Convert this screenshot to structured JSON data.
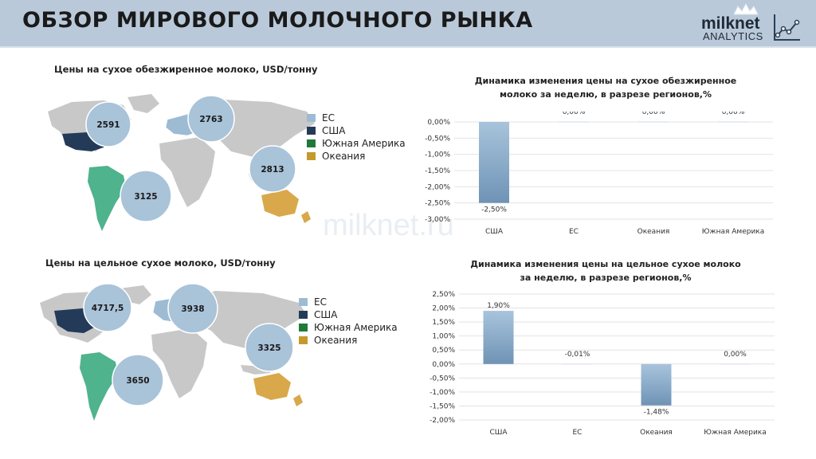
{
  "header": {
    "title": "ОБЗОР МИРОВОГО МОЛОЧНОГО РЫНКА",
    "logo_name": "milknet",
    "logo_sub": "ANALYTICS",
    "watermark": "milknet.ru"
  },
  "colors": {
    "eu": "#9dbbd3",
    "usa": "#243a59",
    "south_america": "#4fb38d",
    "oceania": "#d9a84a",
    "land": "#c8c8c8",
    "bubble": "#a9c3d9"
  },
  "smp_map": {
    "title": "Цены на сухое обезжиренное молоко, USD/тонну",
    "bubbles": {
      "usa": "2591",
      "eu": "2763",
      "south_america": "3125",
      "oceania": "2813"
    },
    "legend": [
      "ЕС",
      "США",
      "Южная Америка",
      "Океания"
    ]
  },
  "wmp_map": {
    "title": "Цены на цельное сухое молоко, USD/тонну",
    "bubbles": {
      "usa": "4717,5",
      "eu": "3938",
      "south_america": "3650",
      "oceania": "3325"
    },
    "legend": [
      "ЕС",
      "США",
      "Южная Америка",
      "Океания"
    ]
  },
  "chart_data": [
    {
      "type": "bar",
      "title": "Динамика изменения цены на сухое обезжиренное молоко за неделю, в разрезе регионов,%",
      "categories": [
        "США",
        "ЕС",
        "Океания",
        "Южная Америка"
      ],
      "values": [
        -2.5,
        0.0,
        0.0,
        0.0
      ],
      "data_labels": [
        "-2,50%",
        "0,00%",
        "0,00%",
        "0,00%"
      ],
      "ylim": [
        -3.0,
        0.0
      ],
      "yticks": [
        "0,00%",
        "-0,50%",
        "-1,00%",
        "-1,50%",
        "-2,00%",
        "-2,50%",
        "-3,00%"
      ],
      "grid": true
    },
    {
      "type": "bar",
      "title": "Динамика изменения цены на цельное сухое молоко за неделю, в разрезе регионов,%",
      "categories": [
        "США",
        "ЕС",
        "Океания",
        "Южная Америка"
      ],
      "values": [
        1.9,
        -0.01,
        -1.48,
        0.0
      ],
      "data_labels": [
        "1,90%",
        "-0,01%",
        "-1,48%",
        "0,00%"
      ],
      "ylim": [
        -2.0,
        2.5
      ],
      "yticks": [
        "2,50%",
        "2,00%",
        "1,50%",
        "1,00%",
        "0,50%",
        "0,00%",
        "-0,50%",
        "-1,00%",
        "-1,50%",
        "-2,00%"
      ],
      "grid": true
    }
  ]
}
